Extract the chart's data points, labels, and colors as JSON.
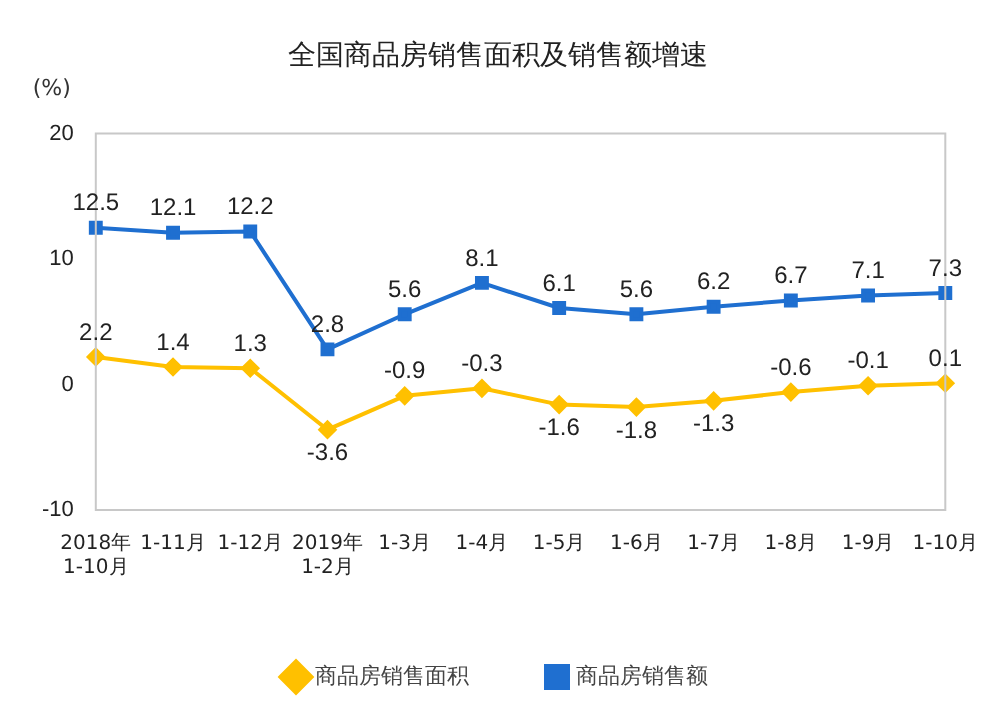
{
  "chart_data": {
    "type": "line",
    "title": "全国商品房销售面积及销售额增速",
    "ylabel": "(%)",
    "categories": [
      "2018年\n1-10月",
      "1-11月",
      "1-12月",
      "2019年\n1-2月",
      "1-3月",
      "1-4月",
      "1-5月",
      "1-6月",
      "1-7月",
      "1-8月",
      "1-9月",
      "1-10月"
    ],
    "series": [
      {
        "name": "商品房销售面积",
        "color": "#ffc000",
        "marker": "diamond",
        "values": [
          2.2,
          1.4,
          1.3,
          -3.6,
          -0.9,
          -0.3,
          -1.6,
          -1.8,
          -1.3,
          -0.6,
          -0.1,
          0.1
        ]
      },
      {
        "name": "商品房销售额",
        "color": "#1f6fd0",
        "marker": "square",
        "values": [
          12.5,
          12.1,
          12.2,
          2.8,
          5.6,
          8.1,
          6.1,
          5.6,
          6.2,
          6.7,
          7.1,
          7.3
        ]
      }
    ],
    "ylim": [
      -10,
      20
    ],
    "yticks": [
      -10,
      0,
      10,
      20
    ],
    "grid": false,
    "legend": "bottom",
    "data_labels": true
  }
}
